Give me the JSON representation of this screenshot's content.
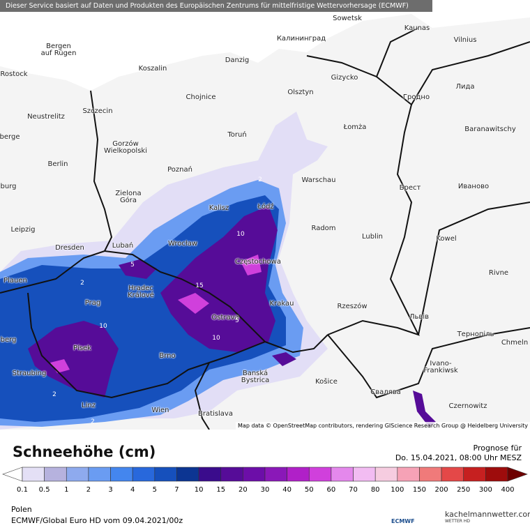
{
  "header": {
    "notice": "Dieser Service basiert auf Daten und Produkten des Europäischen Zentrums für mittelfristige Wettervorhersage (ECMWF)"
  },
  "map": {
    "attribution": "Map data © OpenStreetMap contributors, rendering GIScience Research Group @ Heidelberg University",
    "cities": [
      "Sowetsk",
      "Kaunas",
      "Vilnius",
      "Калининград",
      "Bergen\nauf Rügen",
      "Rostock",
      "Danzig",
      "Koszalin",
      "Gizycko",
      "Olsztyn",
      "Chojnice",
      "Гродно",
      "Лида",
      "Szczecin",
      "Neustrelitz",
      "Łomża",
      "Baranawitschy",
      "berge",
      "Toruń",
      "Gorzów\nWielkopolski",
      "Berlin",
      "Poznań",
      "Warschau",
      "Брест",
      "Иваново",
      "burg",
      "Zielona\nGóra",
      "Łódź",
      "Kalisz",
      "Radom",
      "Leipzig",
      "Lublin",
      "Kowel",
      "Dresden",
      "Lubań",
      "Wrocław",
      "Częstochowa",
      "Rivne",
      "Plauen",
      "Hradec\nKrálové",
      "Prag",
      "Krakau",
      "Rzeszów",
      "Львів",
      "Ostrava",
      "Тернопіль",
      "berg",
      "Chmeln",
      "Písek",
      "Brno",
      "Ivano-\nFrankiwsk",
      "Straubing",
      "Banská\nBystrica",
      "Košice",
      "Свалява",
      "Linz",
      "Czernowitz",
      "Wien",
      "Bratislava"
    ],
    "contour_labels": [
      2,
      10,
      15,
      2,
      5,
      10,
      2,
      10,
      5,
      2
    ]
  },
  "legend": {
    "title": "Schneehöhe (cm)",
    "labels": [
      0.1,
      0.5,
      1,
      2,
      3,
      4,
      5,
      7,
      10,
      15,
      20,
      30,
      40,
      50,
      60,
      70,
      80,
      100,
      150,
      200,
      250,
      300,
      400
    ],
    "colors": [
      "#e4e0f6",
      "#b6b2de",
      "#8eaaee",
      "#6a9cf2",
      "#4486ee",
      "#2868dc",
      "#1650bc",
      "#0c3592",
      "#3a0c8c",
      "#560c98",
      "#6c0ea8",
      "#8a18b8",
      "#b020c8",
      "#d040dc",
      "#e488ec",
      "#f2bcf2",
      "#f6cce0",
      "#f6a2b6",
      "#f07a7a",
      "#e44848",
      "#c62020",
      "#9e0c0c"
    ],
    "under_color": "#ffffff",
    "over_color": "#6e0000"
  },
  "forecast": {
    "label": "Prognose für",
    "time": "Do. 15.04.2021, 08:00 Uhr MESZ"
  },
  "footer": {
    "region": "Polen",
    "model": "ECMWF/Global Euro HD vom  09.04.2021/00z",
    "ecmwf_logo": "ECMWF",
    "brand": "kachelmannwetter.com",
    "brand_sub": "WETTER HD"
  }
}
